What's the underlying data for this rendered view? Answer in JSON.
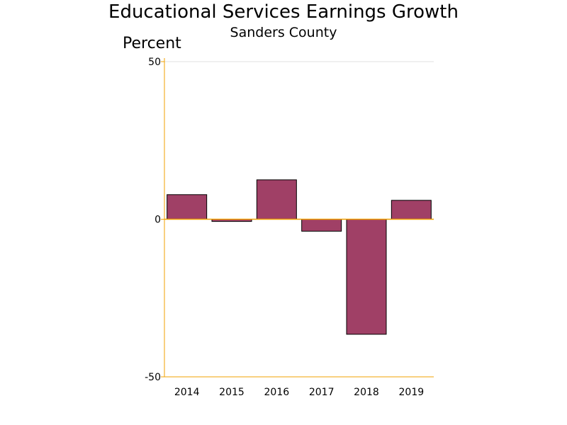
{
  "chart_data": {
    "type": "bar",
    "title": "Educational Services Earnings Growth",
    "subtitle": "Sanders County",
    "ylabel": "Percent",
    "xlabel": "",
    "categories": [
      "2014",
      "2015",
      "2016",
      "2017",
      "2018",
      "2019"
    ],
    "values": [
      7.8,
      -0.7,
      12.5,
      -3.8,
      -36.5,
      6.0
    ],
    "ylim": [
      -50,
      50
    ],
    "yticks": [
      50,
      0,
      -50
    ],
    "grid": false,
    "legend": "none",
    "colors": {
      "bar_fill": "#A04066",
      "bar_stroke": "#000000",
      "axis": "#F0A000",
      "top_line": "#E0E0E0",
      "zero_line": "#F0A000"
    }
  }
}
